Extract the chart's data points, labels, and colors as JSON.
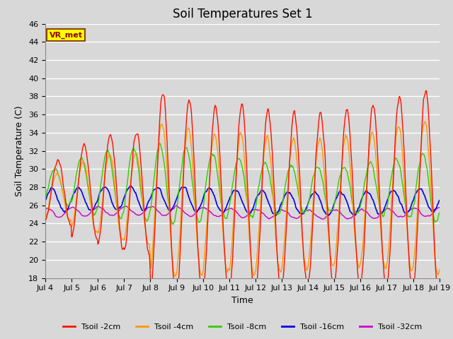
{
  "title": "Soil Temperatures Set 1",
  "xlabel": "Time",
  "ylabel": "Soil Temperature (C)",
  "ylim": [
    18,
    46
  ],
  "yticks": [
    18,
    20,
    22,
    24,
    26,
    28,
    30,
    32,
    34,
    36,
    38,
    40,
    42,
    44,
    46
  ],
  "background_color": "#d8d8d8",
  "plot_bg_color": "#d8d8d8",
  "grid_color": "#ffffff",
  "colors": {
    "2cm": "#ff1100",
    "4cm": "#ff9900",
    "8cm": "#33cc00",
    "16cm": "#0000ee",
    "32cm": "#cc00cc"
  },
  "legend_labels": [
    "Tsoil -2cm",
    "Tsoil -4cm",
    "Tsoil -8cm",
    "Tsoil -16cm",
    "Tsoil -32cm"
  ],
  "annotation_text": "VR_met",
  "annotation_bg": "#ffff00",
  "annotation_border": "#8B4513",
  "title_fontsize": 12,
  "axis_label_fontsize": 9,
  "tick_fontsize": 8
}
